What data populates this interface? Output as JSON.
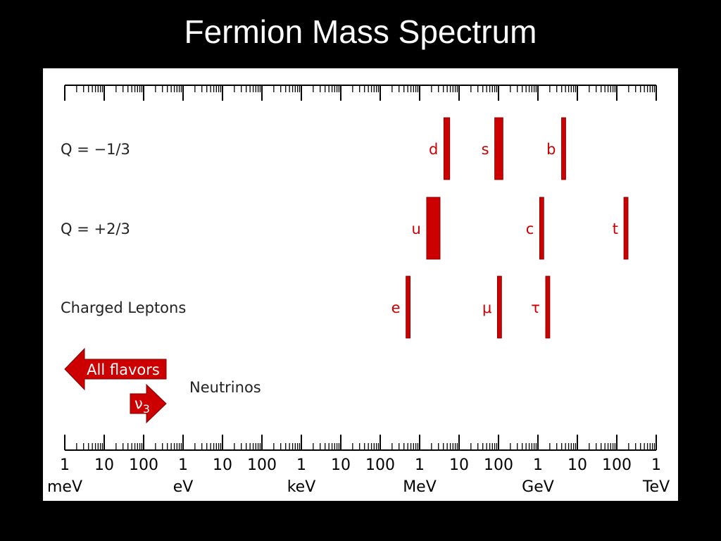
{
  "title": "Fermion Mass Spectrum",
  "colors": {
    "bar": "#cc0000",
    "background": "#000000",
    "panel": "#ffffff"
  },
  "chart_data": {
    "type": "bar",
    "x_scale": "log",
    "x_unit": "eV",
    "xlim": [
      0.001,
      1000000000000
    ],
    "tick_labels": [
      "1",
      "10",
      "100",
      "1",
      "10",
      "100",
      "1",
      "10",
      "100",
      "1",
      "10",
      "100",
      "1",
      "10",
      "100",
      "1"
    ],
    "unit_labels": [
      "meV",
      "eV",
      "keV",
      "MeV",
      "GeV",
      "TeV"
    ],
    "rows": [
      {
        "name": "Q = −1/3",
        "particles": [
          {
            "label": "d",
            "mass_min": 4100000,
            "mass_max": 5800000
          },
          {
            "label": "s",
            "mass_min": 80000000,
            "mass_max": 130000000
          },
          {
            "label": "b",
            "mass_min": 4100000000,
            "mass_max": 4900000000
          }
        ]
      },
      {
        "name": "Q = +2/3",
        "particles": [
          {
            "label": "u",
            "mass_min": 1500000,
            "mass_max": 3300000
          },
          {
            "label": "c",
            "mass_min": 1150000000,
            "mass_max": 1350000000
          },
          {
            "label": "t",
            "mass_min": 166000000000,
            "mass_max": 176000000000
          }
        ]
      },
      {
        "name": "Charged Leptons",
        "particles": [
          {
            "label": "e",
            "mass_min": 480000,
            "mass_max": 540000
          },
          {
            "label": "μ",
            "mass_min": 100000000,
            "mass_max": 112000000
          },
          {
            "label": "τ",
            "mass_min": 1700000000,
            "mass_max": 1850000000
          }
        ]
      }
    ],
    "neutrinos": {
      "label": "Neutrinos",
      "all_flavors_label": "All flavors",
      "nu3_label": "ν",
      "nu3_sub": "3"
    }
  }
}
